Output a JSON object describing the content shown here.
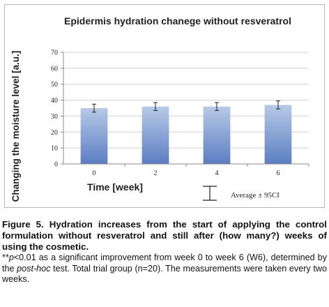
{
  "chart_data": {
    "type": "bar",
    "title": "Epidermis hydration chanege without resveratrol",
    "ylabel": "Changing the moisture level [a.u.]",
    "xlabel": "Time [week]",
    "categories": [
      "0",
      "2",
      "4",
      "6"
    ],
    "values": [
      35,
      36,
      36,
      37
    ],
    "error_low": [
      32.5,
      33.5,
      33.5,
      34.5
    ],
    "error_high": [
      37.5,
      38.5,
      38.5,
      39.5
    ],
    "ylim": [
      0,
      70
    ],
    "yticks": [
      "0",
      "10",
      "20",
      "30",
      "40",
      "50",
      "60",
      "70"
    ],
    "grid": true,
    "legend": {
      "label": "Average ± 95CI",
      "placement": "bottom-right"
    },
    "colors": {
      "bar_top": "#b7c9e6",
      "bar_bottom": "#5b7ec2",
      "grid": "#d0d0d0",
      "axis": "#888888",
      "error": "#222222"
    }
  },
  "caption": {
    "figure_text": "Figure 5. Hydration increases from the start of applying the control formulation without resveratrol and still after (how many?) weeks of using the cosmetic.",
    "note_prefix": "**",
    "note_p": "p",
    "note_part1": "<0.01 as a significant improvement from week 0 to week 6 (W6), determined by the ",
    "note_posthoc": "post-hoc",
    "note_part2": " test. Total trial group (n=20). The measurements were taken every two weeks."
  }
}
